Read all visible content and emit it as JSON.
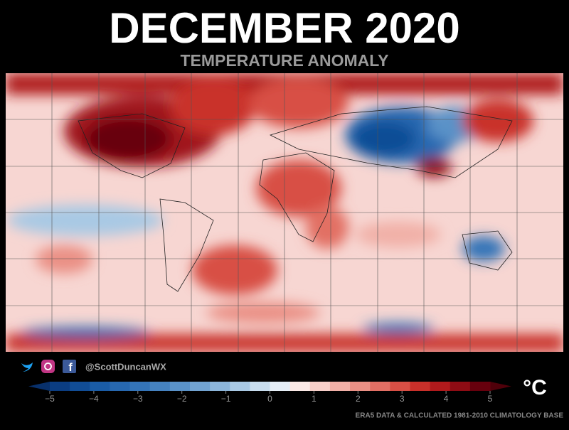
{
  "title": "DECEMBER 2020",
  "subtitle": "TEMPERATURE ANOMALY",
  "handle": "@ScottDuncanWX",
  "unit": "°C",
  "source": "ERA5 DATA & CALCULATED 1981-2010 CLIMATOLOGY BASE",
  "colorbar": {
    "lim": [
      -5,
      5
    ],
    "ticks": [
      {
        "value": -5,
        "label": "−5"
      },
      {
        "value": -4,
        "label": "−4"
      },
      {
        "value": -3,
        "label": "−3"
      },
      {
        "value": -2,
        "label": "−2"
      },
      {
        "value": -1,
        "label": "−1"
      },
      0,
      1,
      2,
      3,
      4,
      5
    ],
    "colors": [
      "#08306b",
      "#0b3d82",
      "#114d96",
      "#1a5ca6",
      "#2768b0",
      "#3474b8",
      "#4582c0",
      "#5a92c8",
      "#72a3d1",
      "#8cb5da",
      "#a9c9e4",
      "#c8ddee",
      "#e6eef6",
      "#fbe9e6",
      "#f7cfc9",
      "#f1b0a7",
      "#ea9085",
      "#e26f64",
      "#d84f45",
      "#c9302a",
      "#b01a1c",
      "#8e0c14",
      "#67000d",
      "#50000a"
    ]
  }
}
